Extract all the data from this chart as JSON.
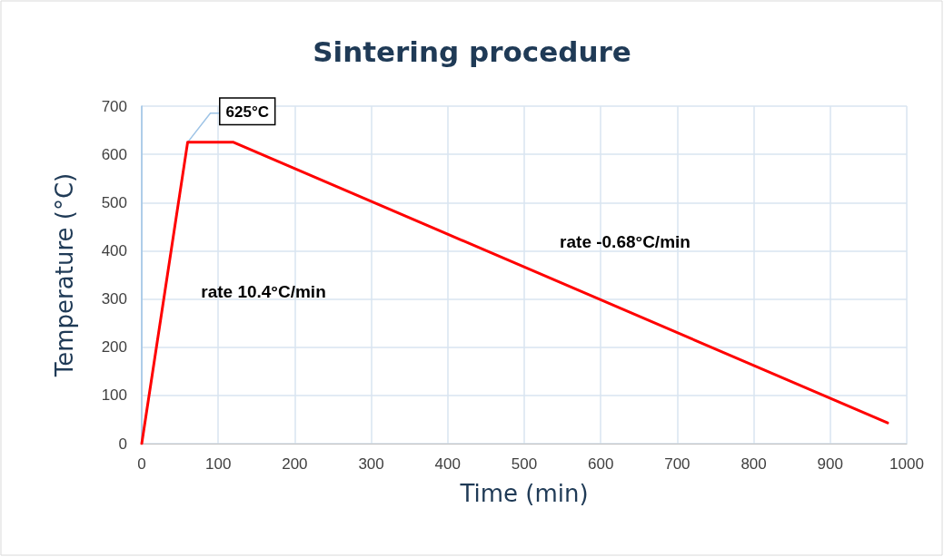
{
  "chart_data": {
    "type": "line",
    "title": "Sintering procedure",
    "xlabel": "Time (min)",
    "ylabel": "Temperature (°C)",
    "x": [
      0,
      60,
      120,
      975
    ],
    "series": [
      {
        "color": "#ff0000",
        "values": [
          0,
          625,
          625,
          43
        ]
      }
    ],
    "xlim": [
      0,
      1000
    ],
    "xticks": [
      0,
      100,
      200,
      300,
      400,
      500,
      600,
      700,
      800,
      900,
      1000
    ],
    "ylim": [
      0,
      700
    ],
    "yticks": [
      0,
      100,
      200,
      300,
      400,
      500,
      600,
      700
    ],
    "grid": true,
    "marker": "none",
    "line_style": "solid",
    "annotations": [
      {
        "text": "625°C",
        "x": 60,
        "y": 625
      },
      "rate 10.4°C/min",
      "rate -0.68°C/min"
    ]
  }
}
